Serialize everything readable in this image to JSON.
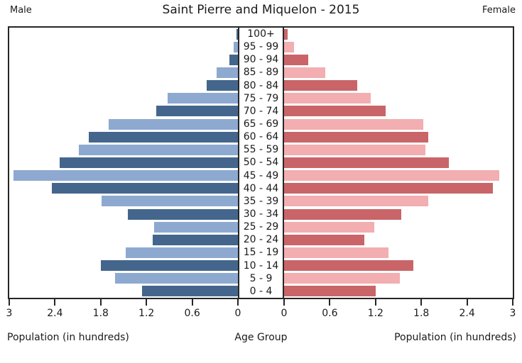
{
  "header": {
    "title": "Saint Pierre and Miquelon - 2015",
    "left_label": "Male",
    "right_label": "Female"
  },
  "chart_data": {
    "type": "bar",
    "subtype": "population-pyramid",
    "title": "Saint Pierre and Miquelon - 2015",
    "xlabel_left": "Population (in hundreds)",
    "xlabel_center": "Age Group",
    "xlabel_right": "Population (in hundreds)",
    "xlim": [
      0,
      3
    ],
    "axis_ticks": [
      0,
      0.6,
      1.2,
      1.8,
      2.4,
      3
    ],
    "age_groups": [
      "100+",
      "95 - 99",
      "90 - 94",
      "85 - 89",
      "80 - 84",
      "75 - 79",
      "70 - 74",
      "65 - 69",
      "60 - 64",
      "55 - 59",
      "50 - 54",
      "45 - 49",
      "40 - 44",
      "35 - 39",
      "30 - 34",
      "25 - 29",
      "20 - 24",
      "15 - 19",
      "10 - 14",
      "5 - 9",
      "0 - 4"
    ],
    "series": [
      {
        "name": "Male",
        "side": "left",
        "values": [
          0.02,
          0.06,
          0.11,
          0.28,
          0.41,
          0.92,
          1.07,
          1.7,
          1.96,
          2.09,
          2.34,
          2.94,
          2.44,
          1.79,
          1.44,
          1.1,
          1.12,
          1.47,
          1.8,
          1.61,
          1.26
        ]
      },
      {
        "name": "Female",
        "side": "right",
        "values": [
          0.05,
          0.13,
          0.32,
          0.54,
          0.96,
          1.14,
          1.33,
          1.83,
          1.89,
          1.85,
          2.16,
          2.82,
          2.74,
          1.89,
          1.54,
          1.18,
          1.05,
          1.37,
          1.7,
          1.52,
          1.2
        ]
      }
    ],
    "colors": {
      "male_dark": "#44668C",
      "male_light": "#8DA9D0",
      "female_dark": "#C96568",
      "female_light": "#F2AEB0",
      "axis": "#262626"
    }
  }
}
